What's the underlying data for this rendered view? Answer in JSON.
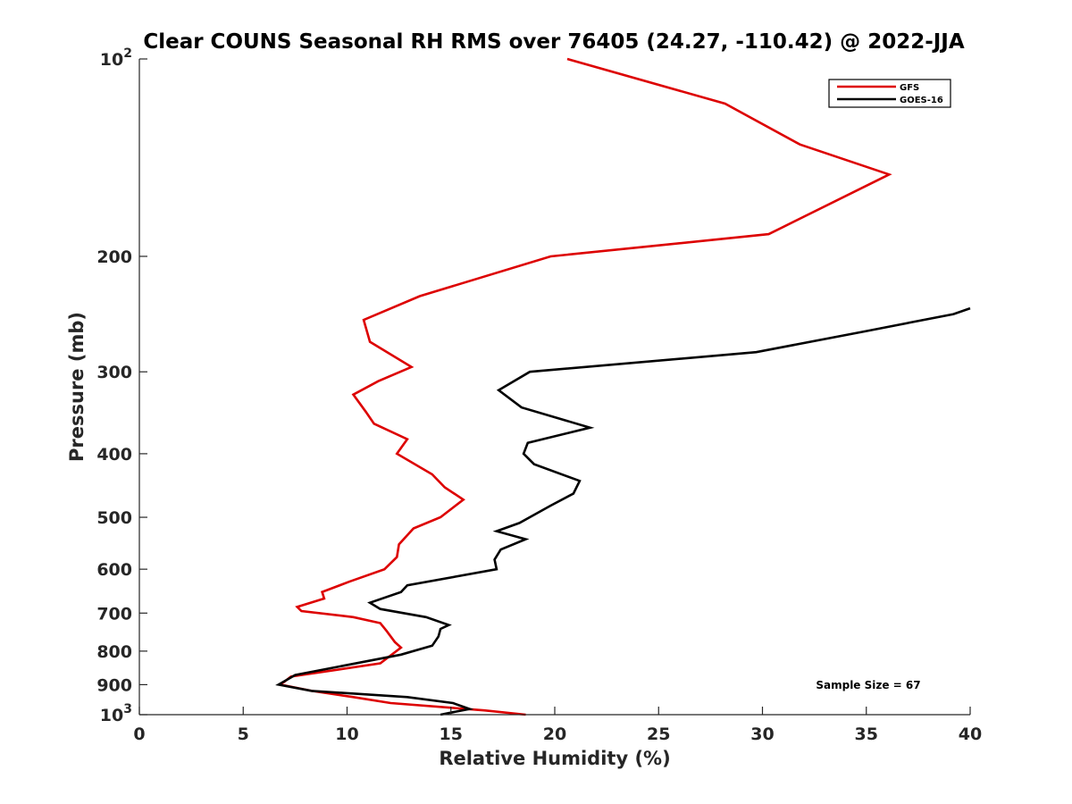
{
  "chart_data": {
    "type": "line",
    "title": "Clear COUNS Seasonal RH RMS over 76405 (24.27, -110.42) @ 2022-JJA",
    "xlabel": "Relative Humidity (%)",
    "ylabel": "Pressure (mb)",
    "xlim": [
      0,
      40
    ],
    "ylim": [
      100,
      1000
    ],
    "yscale": "log",
    "y_reversed": true,
    "grid": false,
    "legend_position": "top-right",
    "x_ticks": [
      0,
      5,
      10,
      15,
      20,
      25,
      30,
      35,
      40
    ],
    "x_tick_labels": [
      "0",
      "5",
      "10",
      "15",
      "20",
      "25",
      "30",
      "35",
      "40"
    ],
    "y_ticks": [
      100,
      200,
      300,
      400,
      500,
      600,
      700,
      800,
      900,
      1000
    ],
    "y_tick_labels": [
      {
        "base": "10",
        "exp": "2"
      },
      {
        "text": "200"
      },
      {
        "text": "300"
      },
      {
        "text": "400"
      },
      {
        "text": "500"
      },
      {
        "text": "600"
      },
      {
        "text": "700"
      },
      {
        "text": "800"
      },
      {
        "text": "900"
      },
      {
        "base": "10",
        "exp": "3"
      }
    ],
    "series": [
      {
        "name": "GFS",
        "color": "#dd0000",
        "x": [
          20.6,
          28.2,
          31.8,
          36.1,
          30.3,
          19.8,
          13.5,
          10.8,
          11.1,
          13.1,
          11.5,
          10.3,
          10.9,
          11.3,
          12.9,
          12.4,
          14.1,
          14.7,
          15.6,
          14.5,
          13.2,
          12.5,
          12.4,
          11.8,
          10.1,
          8.8,
          8.9,
          7.6,
          7.8,
          10.3,
          11.6,
          11.9,
          12.3,
          12.6,
          11.6,
          7.3,
          6.8,
          8.3,
          10.3,
          12.1,
          16.6,
          18.6
        ],
        "y": [
          100,
          117,
          135,
          150,
          185,
          200,
          230,
          250,
          270,
          295,
          310,
          325,
          345,
          360,
          380,
          400,
          430,
          450,
          470,
          500,
          520,
          550,
          575,
          600,
          627,
          650,
          665,
          685,
          695,
          710,
          725,
          745,
          775,
          790,
          835,
          875,
          900,
          920,
          940,
          960,
          985,
          1000
        ]
      },
      {
        "name": "GOES-16",
        "color": "#000000",
        "x": [
          40.0,
          39.2,
          35.0,
          29.7,
          18.8,
          17.3,
          18.4,
          21.7,
          18.7,
          18.5,
          19.0,
          21.2,
          20.9,
          19.8,
          18.3,
          17.2,
          18.6,
          17.4,
          17.1,
          17.2,
          12.9,
          12.6,
          11.1,
          11.6,
          13.8,
          14.9,
          14.5,
          14.4,
          14.1,
          12.6,
          7.5,
          6.7,
          8.3,
          12.9,
          15.1,
          15.9,
          14.5
        ],
        "y": [
          240,
          245,
          260,
          280,
          300,
          320,
          340,
          365,
          385,
          400,
          415,
          440,
          460,
          480,
          510,
          525,
          540,
          560,
          580,
          600,
          635,
          650,
          675,
          690,
          710,
          730,
          740,
          760,
          785,
          810,
          870,
          900,
          920,
          940,
          960,
          980,
          1000
        ]
      }
    ],
    "annotations": [
      {
        "text": "Sample Size = 67",
        "x": 35,
        "y": 900
      }
    ]
  }
}
